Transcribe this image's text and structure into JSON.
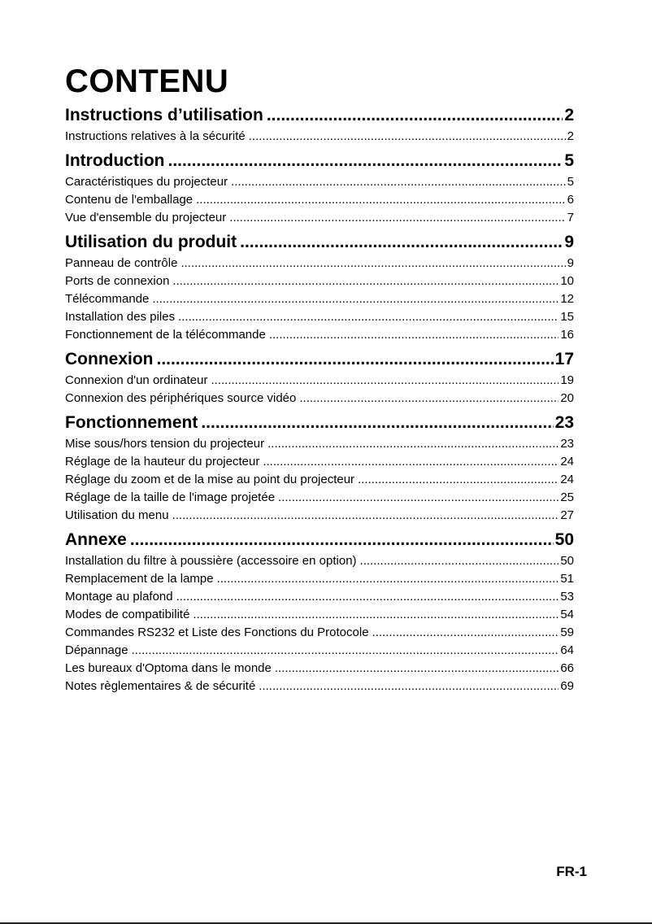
{
  "title": "CONTENU",
  "sections": [
    {
      "label": "Instructions d’utilisation",
      "page": "2",
      "items": [
        {
          "label": "Instructions relatives à la sécurité",
          "page": "2"
        }
      ]
    },
    {
      "label": "Introduction",
      "page": "5",
      "items": [
        {
          "label": "Caractéristiques du projecteur",
          "page": "5"
        },
        {
          "label": "Contenu de l'emballage",
          "page": "6"
        },
        {
          "label": "Vue d'ensemble du projecteur",
          "page": "7"
        }
      ]
    },
    {
      "label": "Utilisation du produit",
      "page": "9",
      "items": [
        {
          "label": "Panneau de contrôle",
          "page": "9"
        },
        {
          "label": "Ports de connexion",
          "page": "10"
        },
        {
          "label": "Télécommande",
          "page": "12"
        },
        {
          "label": "Installation des piles",
          "page": "15"
        },
        {
          "label": "Fonctionnement de la télécommande",
          "page": "16"
        }
      ]
    },
    {
      "label": "Connexion",
      "page": "17",
      "items": [
        {
          "label": "Connexion d'un ordinateur",
          "page": "19"
        },
        {
          "label": "Connexion des périphériques source vidéo",
          "page": "20"
        }
      ]
    },
    {
      "label": "Fonctionnement",
      "page": "23",
      "items": [
        {
          "label": "Mise sous/hors tension du projecteur",
          "page": "23"
        },
        {
          "label": "Réglage de la hauteur du projecteur",
          "page": "24"
        },
        {
          "label": "Réglage du zoom et de la mise au point du projecteur",
          "page": "24"
        },
        {
          "label": "Réglage de la taille de l'image projetée",
          "page": "25"
        },
        {
          "label": "Utilisation du menu",
          "page": "27"
        }
      ]
    },
    {
      "label": "Annexe",
      "page": "50",
      "items": [
        {
          "label": "Installation du filtre à poussière (accessoire en option)",
          "page": "50"
        },
        {
          "label": "Remplacement de la lampe",
          "page": "51"
        },
        {
          "label": "Montage au plafond",
          "page": "53"
        },
        {
          "label": "Modes de compatibilité",
          "page": "54"
        },
        {
          "label": "Commandes RS232 et Liste des Fonctions du Protocole",
          "page": "59"
        },
        {
          "label": "Dépannage",
          "page": "64"
        },
        {
          "label": "Les bureaux d'Optoma dans le monde",
          "page": "66"
        },
        {
          "label": "Notes règlementaires & de sécurité",
          "page": "69"
        }
      ]
    }
  ],
  "footer": {
    "page_label": "FR-1"
  }
}
